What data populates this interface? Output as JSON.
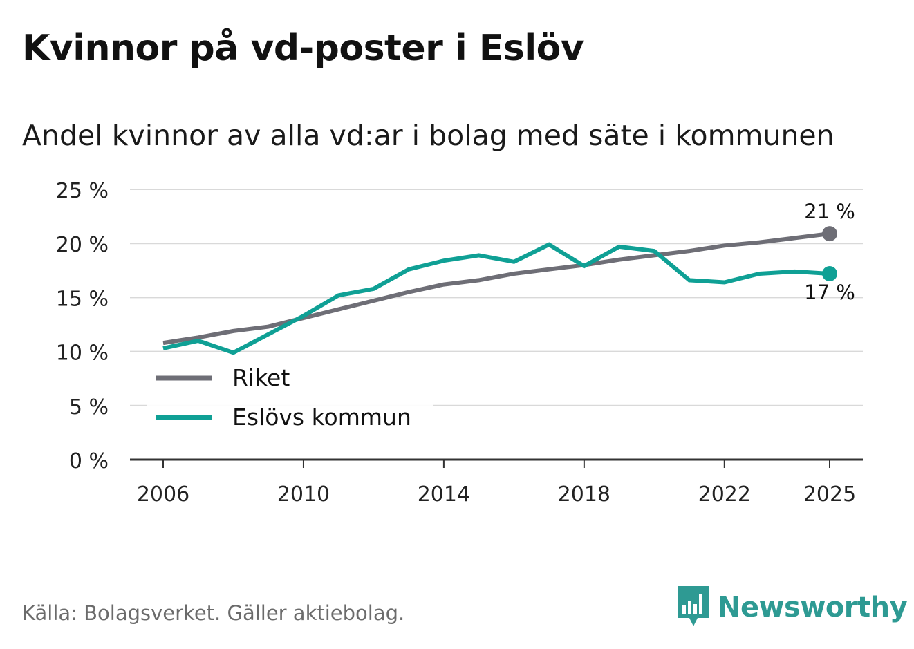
{
  "header": {
    "title": "Kvinnor på vd-poster i Eslöv",
    "subtitle": "Andel kvinnor av alla vd:ar i bolag med säte i kommunen"
  },
  "footer": {
    "source": "Källa: Bolagsverket. Gäller aktiebolag.",
    "brand": "Newsworthy"
  },
  "colors": {
    "riket": "#6e6e76",
    "eslov": "#0fa095",
    "grid": "#d9d9d9",
    "axis": "#333333",
    "brand": "#2e9a93"
  },
  "chart_data": {
    "type": "line",
    "title": "Kvinnor på vd-poster i Eslöv",
    "subtitle": "Andel kvinnor av alla vd:ar i bolag med säte i kommunen",
    "xlabel": "",
    "ylabel": "",
    "ylim": [
      0,
      25
    ],
    "yticks": [
      0,
      5,
      10,
      15,
      20,
      25
    ],
    "ytick_labels": [
      "0 %",
      "5 %",
      "10 %",
      "15 %",
      "20 %",
      "25 %"
    ],
    "xlim": [
      2006,
      2025
    ],
    "xticks": [
      2006,
      2010,
      2014,
      2018,
      2022,
      2025
    ],
    "xtick_labels": [
      "2006",
      "2010",
      "2014",
      "2018",
      "2022",
      "2025"
    ],
    "grid": true,
    "legend_position": "bottom-left",
    "x": [
      2006,
      2007,
      2008,
      2009,
      2010,
      2011,
      2012,
      2013,
      2014,
      2015,
      2016,
      2017,
      2018,
      2019,
      2020,
      2021,
      2022,
      2023,
      2024,
      2025
    ],
    "series": [
      {
        "name": "Riket",
        "color": "#6e6e76",
        "values": [
          10.8,
          11.3,
          11.9,
          12.3,
          13.1,
          13.9,
          14.7,
          15.5,
          16.2,
          16.6,
          17.2,
          17.6,
          18.0,
          18.5,
          18.9,
          19.3,
          19.8,
          20.1,
          20.5,
          20.9
        ],
        "end_label": "21 %"
      },
      {
        "name": "Eslövs kommun",
        "color": "#0fa095",
        "values": [
          10.3,
          11.0,
          9.9,
          11.6,
          13.3,
          15.2,
          15.8,
          17.6,
          18.4,
          18.9,
          18.3,
          19.9,
          17.9,
          19.7,
          19.3,
          16.6,
          16.4,
          17.2,
          17.4,
          17.2
        ],
        "end_label": "17 %"
      }
    ]
  }
}
